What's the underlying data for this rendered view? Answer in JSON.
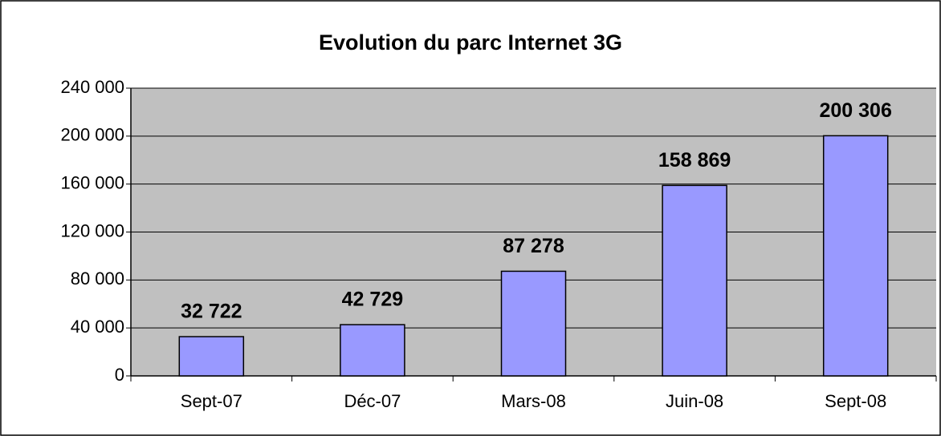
{
  "chart_data": {
    "type": "bar",
    "title": "Evolution du parc Internet 3G",
    "categories": [
      "Sept-07",
      "Déc-07",
      "Mars-08",
      "Juin-08",
      "Sept-08"
    ],
    "values": [
      32722,
      42729,
      87278,
      158869,
      200306
    ],
    "value_labels": [
      "32 722",
      "42 729",
      "87 278",
      "158 869",
      "200 306"
    ],
    "color": "#9999ff",
    "ylim": [
      0,
      240000
    ],
    "yticks": [
      0,
      {
        "value": 40000,
        "label": "40 000"
      },
      {
        "value": 80000,
        "label": "80 000"
      },
      {
        "value": 120000,
        "label": "120 000"
      },
      {
        "value": 160000,
        "label": "160 000"
      },
      {
        "value": 200000,
        "label": "200 000"
      },
      {
        "value": 240000,
        "label": "240 000"
      }
    ],
    "grid": true
  }
}
